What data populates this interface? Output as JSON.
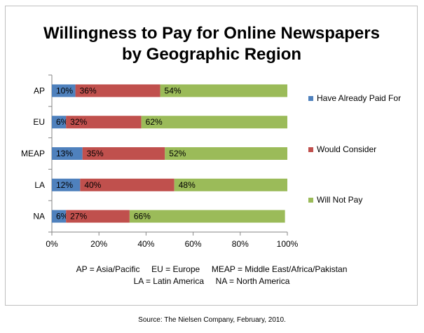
{
  "chart_data": {
    "type": "bar",
    "orientation": "horizontal",
    "stacked": true,
    "title_lines": [
      "Willingness to Pay for Online Newspapers",
      "by Geographic Region"
    ],
    "categories": [
      "AP",
      "EU",
      "MEAP",
      "LA",
      "NA"
    ],
    "series": [
      {
        "name": "Have Already Paid For",
        "color": "#4f81bd",
        "values": [
          10,
          6,
          13,
          12,
          6
        ],
        "labels": [
          "10%",
          "6%",
          "13%",
          "12%",
          "6%"
        ]
      },
      {
        "name": "Would Consider",
        "color": "#c0504d",
        "values": [
          36,
          32,
          35,
          40,
          27
        ],
        "labels": [
          "36%",
          "32%",
          "35%",
          "40%",
          "27%"
        ]
      },
      {
        "name": "Will Not Pay",
        "color": "#9bbb59",
        "values": [
          54,
          62,
          52,
          48,
          66
        ],
        "labels": [
          "54%",
          "62%",
          "52%",
          "48%",
          "66%"
        ]
      }
    ],
    "xlim": [
      0,
      100
    ],
    "x_ticks": [
      "0%",
      "20%",
      "40%",
      "60%",
      "80%",
      "100%"
    ],
    "legend_position": "right",
    "grid": false,
    "footnote_lines": [
      "AP = Asia/Pacific     EU = Europe     MEAP = Middle East/Africa/Pakistan",
      "LA = Latin America     NA = North America"
    ]
  },
  "source": "Source: The Nielsen Company, February, 2010."
}
